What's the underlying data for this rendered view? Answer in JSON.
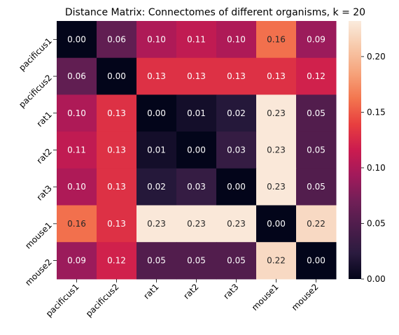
{
  "chart_data": {
    "type": "heatmap",
    "title": "Distance Matrix: Connectomes of different organisms, k = 20",
    "rows": [
      "pacificus1",
      "pacificus2",
      "rat1",
      "rat2",
      "rat3",
      "mouse1",
      "mouse2"
    ],
    "columns": [
      "pacificus1",
      "pacificus2",
      "rat1",
      "rat2",
      "rat3",
      "mouse1",
      "mouse2"
    ],
    "values": [
      [
        0.0,
        0.06,
        0.1,
        0.11,
        0.1,
        0.16,
        0.09
      ],
      [
        0.06,
        0.0,
        0.13,
        0.13,
        0.13,
        0.13,
        0.12
      ],
      [
        0.1,
        0.13,
        0.0,
        0.01,
        0.02,
        0.23,
        0.05
      ],
      [
        0.11,
        0.13,
        0.01,
        0.0,
        0.03,
        0.23,
        0.05
      ],
      [
        0.1,
        0.13,
        0.02,
        0.03,
        0.0,
        0.23,
        0.05
      ],
      [
        0.16,
        0.13,
        0.23,
        0.23,
        0.23,
        0.0,
        0.22
      ],
      [
        0.09,
        0.12,
        0.05,
        0.05,
        0.05,
        0.22,
        0.0
      ]
    ],
    "value_format_decimals": 2,
    "colorbar": {
      "min": 0.0,
      "max": 0.232,
      "ticks": [
        "0.00",
        "0.05",
        "0.10",
        "0.15",
        "0.20"
      ],
      "colormap": "rocket"
    },
    "colormap_stops": [
      "#03051a",
      "#2b1b3f",
      "#4c1d4b",
      "#701f57",
      "#a11a5b",
      "#cb1b4f",
      "#e83f3f",
      "#f3764f",
      "#f6a47c",
      "#f7c9aa",
      "#faebdd"
    ]
  }
}
